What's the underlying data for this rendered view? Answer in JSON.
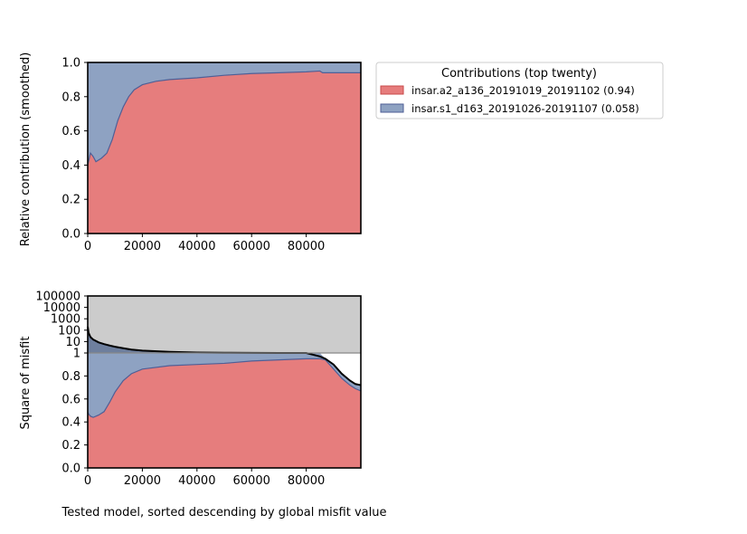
{
  "colors": {
    "red": "#e67d7d",
    "blue": "#8ea2c2",
    "blue_edge": "#4f5f96",
    "red_edge": "#c84a4a",
    "gray": "#cccccc",
    "misfit_line": "#000000"
  },
  "legend": {
    "title": "Contributions (top twenty)",
    "entries": [
      {
        "label": "insar.a2_a136_20191019_20191102 (0.94)",
        "color": "#e67d7d"
      },
      {
        "label": "insar.s1_d163_20191026-20191107 (0.058)",
        "color": "#8ea2c2"
      }
    ],
    "placement": "right of top panel"
  },
  "chart_data": [
    {
      "type": "area",
      "stacked": true,
      "ylabel": "Relative contribution (smoothed)",
      "xlabel": "",
      "xlim": [
        0,
        100000
      ],
      "ylim": [
        0,
        1
      ],
      "xticks": [
        0,
        20000,
        40000,
        60000,
        80000
      ],
      "yticks": [
        "0.0",
        "0.2",
        "0.4",
        "0.6",
        "0.8",
        "1.0"
      ],
      "x": [
        0,
        1000,
        2000,
        3000,
        5000,
        7000,
        9000,
        11000,
        13000,
        15000,
        17000,
        20000,
        25000,
        30000,
        40000,
        50000,
        60000,
        70000,
        80000,
        85000,
        86000,
        90000,
        100000
      ],
      "series": [
        {
          "name": "insar.a2_a136_20191019_20191102 (0.94)",
          "values": [
            0.4,
            0.47,
            0.45,
            0.42,
            0.44,
            0.47,
            0.55,
            0.66,
            0.74,
            0.8,
            0.84,
            0.87,
            0.89,
            0.9,
            0.91,
            0.925,
            0.935,
            0.94,
            0.945,
            0.95,
            0.94,
            0.94,
            0.94
          ]
        },
        {
          "name": "insar.s1_d163_20191026-20191107 (0.058)",
          "values": [
            0.6,
            0.53,
            0.55,
            0.58,
            0.56,
            0.53,
            0.45,
            0.34,
            0.26,
            0.2,
            0.16,
            0.13,
            0.11,
            0.1,
            0.09,
            0.075,
            0.065,
            0.06,
            0.055,
            0.05,
            0.06,
            0.06,
            0.06
          ]
        }
      ]
    },
    {
      "type": "area",
      "stacked": true,
      "ylabel": "Square of misfit",
      "xlabel": "Tested model, sorted descending by global misfit value",
      "xlim": [
        0,
        100000
      ],
      "xticks": [
        0,
        20000,
        40000,
        60000,
        80000
      ],
      "yticks_log": [
        "100000",
        "10000",
        "1000",
        "100",
        "10",
        "1"
      ],
      "yticks_linear": [
        "1",
        "0.8",
        "0.6",
        "0.4",
        "0.2",
        "0.0"
      ],
      "y_scale": "log above 1, linear below 1",
      "misfit_curve": {
        "x": [
          0,
          300,
          1000,
          2000,
          4000,
          6000,
          8000,
          10000,
          13000,
          16000,
          20000,
          30000,
          40000,
          50000,
          60000,
          70000,
          80000,
          85000,
          87000,
          90000,
          93000,
          96000,
          98000,
          100000
        ],
        "y": [
          200,
          60,
          25,
          15,
          8.5,
          6,
          4.5,
          3.5,
          2.6,
          2.0,
          1.6,
          1.25,
          1.1,
          1.05,
          1.02,
          1.01,
          1.0,
          0.97,
          0.95,
          0.9,
          0.82,
          0.76,
          0.73,
          0.72
        ]
      },
      "series": [
        {
          "name": "insar.a2_a136_20191019_20191102 (0.94)",
          "values": [
            0.49,
            0.47,
            0.45,
            0.44,
            0.46,
            0.49,
            0.57,
            0.66,
            0.76,
            0.82,
            0.86,
            0.89,
            0.9,
            0.91,
            0.93,
            0.94,
            0.95,
            0.95,
            0.94,
            0.86,
            0.78,
            0.72,
            0.69,
            0.67
          ]
        },
        {
          "name": "insar.s1_d163_20191026-20191107 (0.058)",
          "values": [
            0.51,
            0.53,
            0.55,
            0.56,
            0.54,
            0.51,
            0.43,
            0.34,
            0.24,
            0.18,
            0.14,
            0.11,
            0.1,
            0.09,
            0.07,
            0.06,
            0.05,
            0.05,
            0.01,
            0.04,
            0.04,
            0.04,
            0.04,
            0.05
          ]
        }
      ]
    }
  ]
}
